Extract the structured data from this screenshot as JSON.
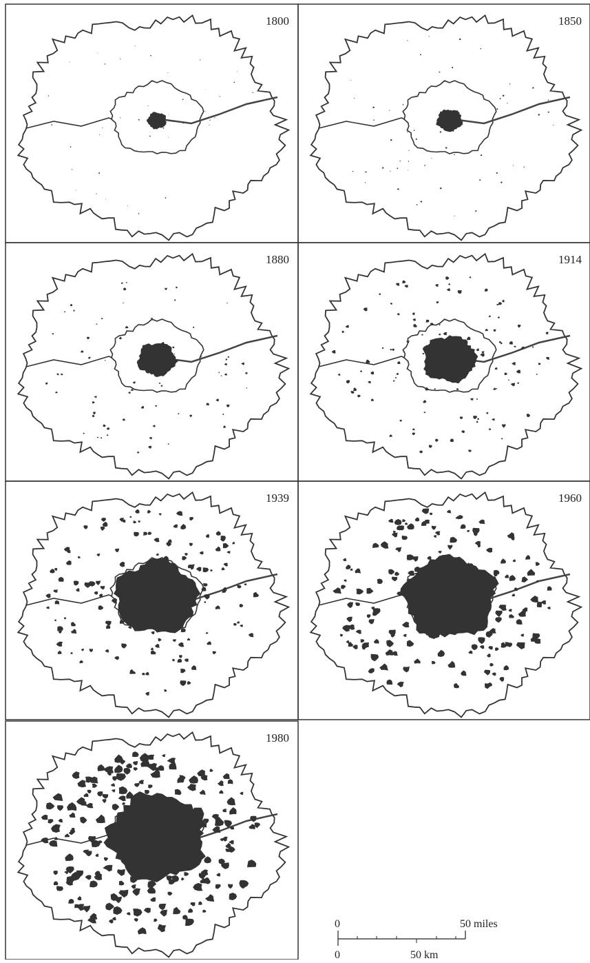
{
  "panels": [
    {
      "year": "1800"
    },
    {
      "year": "1850"
    },
    {
      "year": "1880"
    },
    {
      "year": "1914"
    },
    {
      "year": "1939"
    },
    {
      "year": "1960"
    },
    {
      "year": "1980"
    }
  ],
  "scale": {
    "miles_zero": "0",
    "miles_label": "50 miles",
    "km_zero": "0",
    "km_label": "50 km"
  }
}
